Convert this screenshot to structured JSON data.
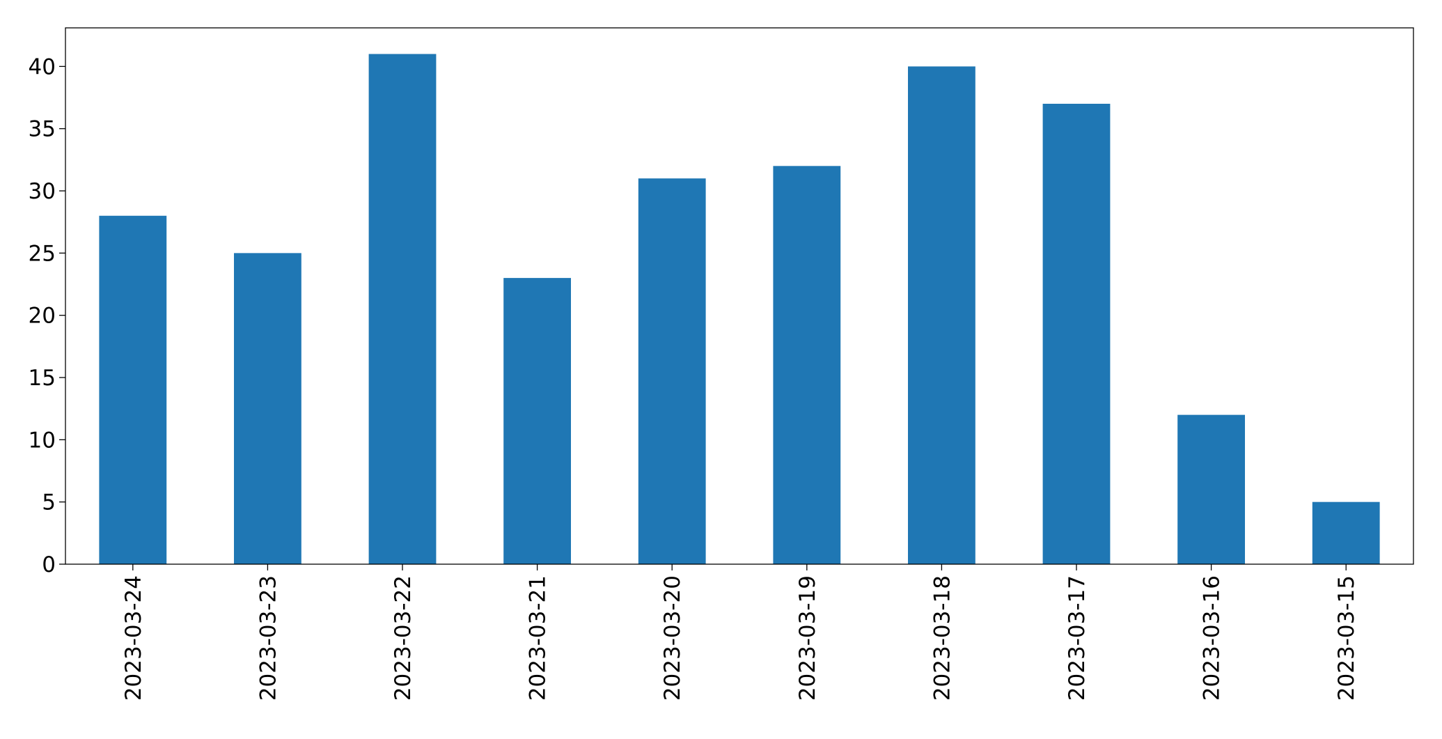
{
  "chart_data": {
    "type": "bar",
    "categories": [
      "2023-03-24",
      "2023-03-23",
      "2023-03-22",
      "2023-03-21",
      "2023-03-20",
      "2023-03-19",
      "2023-03-18",
      "2023-03-17",
      "2023-03-16",
      "2023-03-15"
    ],
    "values": [
      28,
      25,
      41,
      23,
      31,
      32,
      40,
      37,
      12,
      5
    ],
    "color": "#1f77b4",
    "ylim": [
      0,
      43.1
    ],
    "yticks": [
      0,
      5,
      10,
      15,
      20,
      25,
      30,
      35,
      40
    ],
    "grid": false
  }
}
